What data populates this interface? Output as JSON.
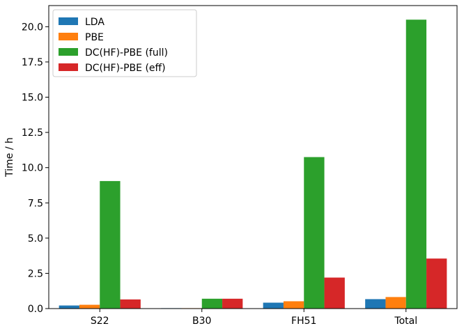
{
  "chart_data": {
    "type": "bar",
    "categories": [
      "S22",
      "B30",
      "FH51",
      "Total"
    ],
    "series": [
      {
        "name": "LDA",
        "color": "#1f77b4",
        "values": [
          0.22,
          0.03,
          0.42,
          0.67
        ]
      },
      {
        "name": "PBE",
        "color": "#ff7f0e",
        "values": [
          0.27,
          0.03,
          0.52,
          0.82
        ]
      },
      {
        "name": "DC(HF)-PBE (full)",
        "color": "#2ca02c",
        "values": [
          9.05,
          0.7,
          10.75,
          20.5
        ]
      },
      {
        "name": "DC(HF)-PBE (eff)",
        "color": "#d62728",
        "values": [
          0.65,
          0.7,
          2.2,
          3.55
        ]
      }
    ],
    "xlabel": "",
    "ylabel": "Time / h",
    "ylim": [
      0,
      21.5
    ],
    "yticks": [
      "0.0",
      "2.5",
      "5.0",
      "7.5",
      "10.0",
      "12.5",
      "15.0",
      "17.5",
      "20.0"
    ],
    "grid": false,
    "legend_position": "top-left"
  }
}
